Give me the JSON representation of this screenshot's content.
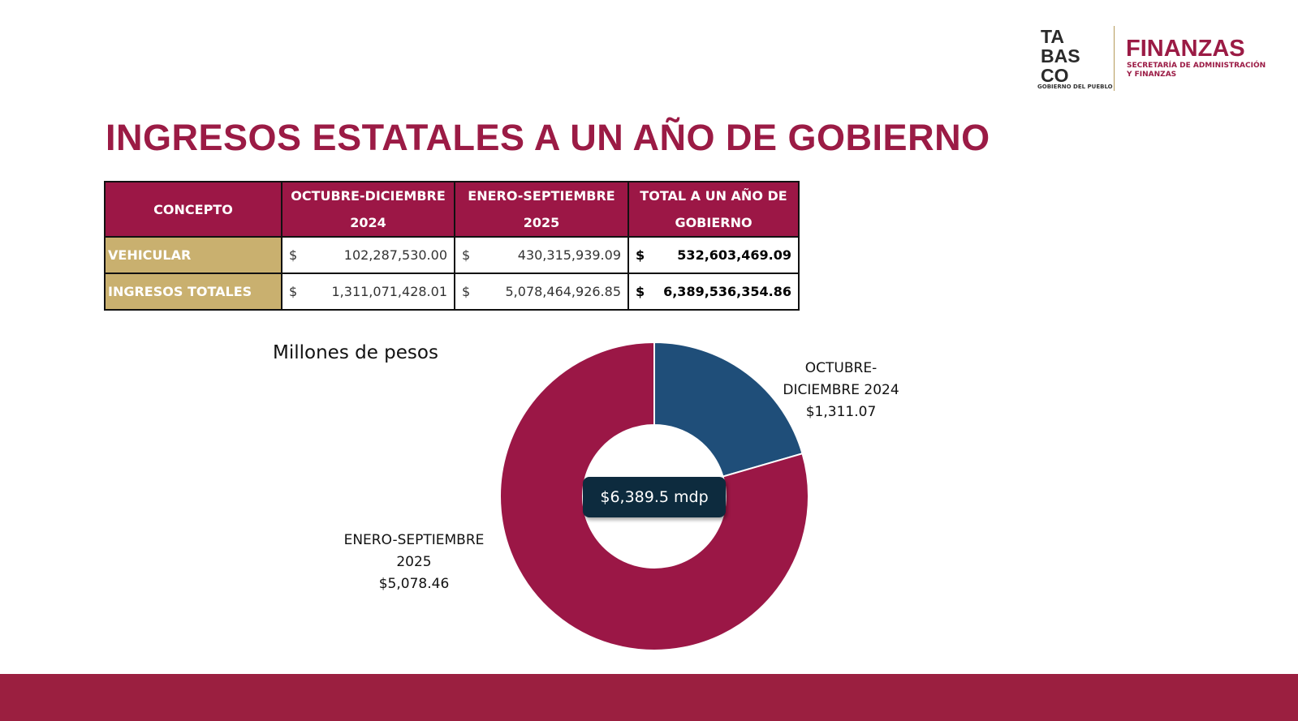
{
  "logo": {
    "mark": [
      "TA",
      "BAS",
      "CO"
    ],
    "tagline": "GOBIERNO DEL PUEBLO",
    "name": "FINANZAS",
    "subtitle": [
      "SECRETARÍA DE ADMINISTRACIÓN",
      "Y FINANZAS"
    ]
  },
  "title": "INGRESOS ESTATALES A UN AÑO DE GOBIERNO",
  "table": {
    "header": [
      "CONCEPTO",
      "OCTUBRE-DICIEMBRE 2024",
      "ENERO-SEPTIEMBRE 2025",
      "TOTAL A UN AÑO DE GOBIERNO"
    ],
    "currency": "$",
    "rows": [
      [
        "VEHICULAR",
        "102,287,530.00",
        "430,315,939.09",
        "532,603,469.09"
      ],
      [
        "INGRESOS TOTALES",
        "1,311,071,428.01",
        "5,078,464,926.85",
        "6,389,536,354.86"
      ]
    ]
  },
  "chart_data": {
    "type": "donut",
    "title": "Millones de pesos",
    "center_label": "$6,389.5 mdp",
    "categories": [
      "OCTUBRE-DICIEMBRE 2024",
      "ENERO-SEPTIEMBRE 2025"
    ],
    "values": [
      1311.07,
      5078.46
    ],
    "value_labels": [
      "$1,311.07",
      "$5,078.46"
    ],
    "colors": [
      "#1f4e79",
      "#9b1746"
    ]
  }
}
